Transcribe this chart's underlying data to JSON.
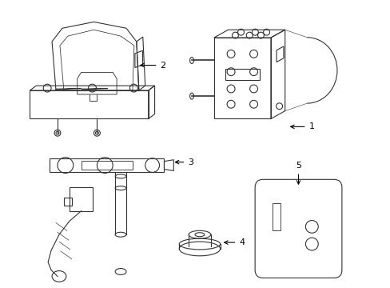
{
  "background_color": "#ffffff",
  "line_color": "#333333",
  "line_width": 0.8,
  "label_fontsize": 8,
  "figsize": [
    4.89,
    3.6
  ],
  "dpi": 100
}
